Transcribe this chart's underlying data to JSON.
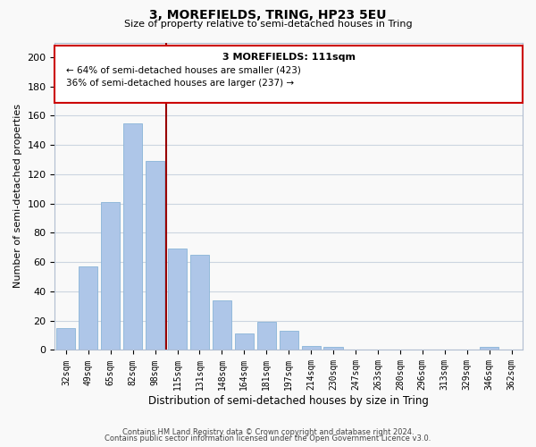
{
  "title": "3, MOREFIELDS, TRING, HP23 5EU",
  "subtitle": "Size of property relative to semi-detached houses in Tring",
  "xlabel": "Distribution of semi-detached houses by size in Tring",
  "ylabel": "Number of semi-detached properties",
  "bar_color": "#aec6e8",
  "bar_edge_color": "#8ab4d8",
  "categories": [
    "32sqm",
    "49sqm",
    "65sqm",
    "82sqm",
    "98sqm",
    "115sqm",
    "131sqm",
    "148sqm",
    "164sqm",
    "181sqm",
    "197sqm",
    "214sqm",
    "230sqm",
    "247sqm",
    "263sqm",
    "280sqm",
    "296sqm",
    "313sqm",
    "329sqm",
    "346sqm",
    "362sqm"
  ],
  "values": [
    15,
    57,
    101,
    155,
    129,
    69,
    65,
    34,
    11,
    19,
    13,
    3,
    2,
    0,
    0,
    0,
    0,
    0,
    0,
    2,
    0
  ],
  "vline_x": 4.5,
  "vline_color": "#990000",
  "annotation_title": "3 MOREFIELDS: 111sqm",
  "annotation_line1": "← 64% of semi-detached houses are smaller (423)",
  "annotation_line2": "36% of semi-detached houses are larger (237) →",
  "annotation_box_edge": "#cc0000",
  "ylim": [
    0,
    210
  ],
  "yticks": [
    0,
    20,
    40,
    60,
    80,
    100,
    120,
    140,
    160,
    180,
    200
  ],
  "footer1": "Contains HM Land Registry data © Crown copyright and database right 2024.",
  "footer2": "Contains public sector information licensed under the Open Government Licence v3.0.",
  "background_color": "#f9f9f9",
  "grid_color": "#ccd5e0"
}
